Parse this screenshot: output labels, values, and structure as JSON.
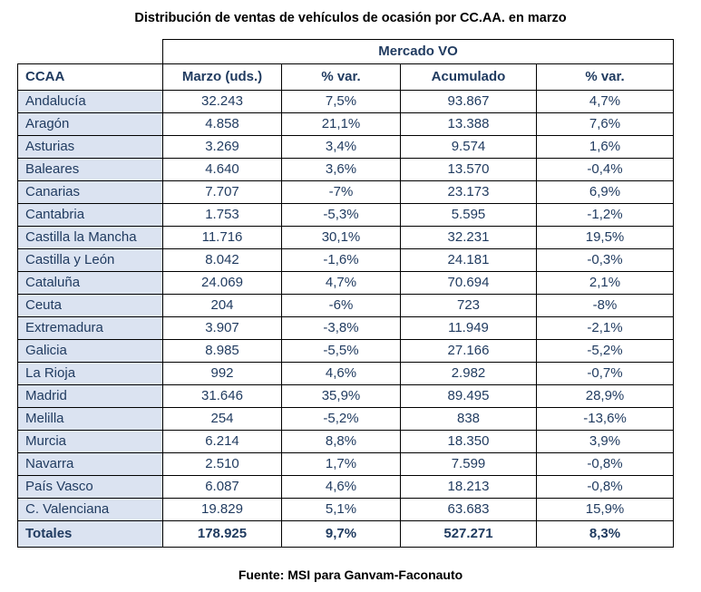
{
  "title": "Distribución de ventas de vehículos de ocasión por CC.AA. en marzo",
  "group_header": "Mercado VO",
  "columns": [
    "CCAA",
    "Marzo (uds.)",
    "% var.",
    "Acumulado",
    "% var."
  ],
  "rows": [
    [
      "Andalucía",
      "32.243",
      "7,5%",
      "93.867",
      "4,7%"
    ],
    [
      "Aragón",
      "4.858",
      "21,1%",
      "13.388",
      "7,6%"
    ],
    [
      "Asturias",
      "3.269",
      "3,4%",
      "9.574",
      "1,6%"
    ],
    [
      "Baleares",
      "4.640",
      "3,6%",
      "13.570",
      "-0,4%"
    ],
    [
      "Canarias",
      "7.707",
      "-7%",
      "23.173",
      "6,9%"
    ],
    [
      "Cantabria",
      "1.753",
      "-5,3%",
      "5.595",
      "-1,2%"
    ],
    [
      "Castilla la Mancha",
      "11.716",
      "30,1%",
      "32.231",
      "19,5%"
    ],
    [
      "Castilla y León",
      "8.042",
      "-1,6%",
      "24.181",
      "-0,3%"
    ],
    [
      "Cataluña",
      "24.069",
      "4,7%",
      "70.694",
      "2,1%"
    ],
    [
      "Ceuta",
      "204",
      "-6%",
      "723",
      "-8%"
    ],
    [
      "Extremadura",
      "3.907",
      "-3,8%",
      "11.949",
      "-2,1%"
    ],
    [
      "Galicia",
      "8.985",
      "-5,5%",
      "27.166",
      "-5,2%"
    ],
    [
      "La Rioja",
      "992",
      "4,6%",
      "2.982",
      "-0,7%"
    ],
    [
      "Madrid",
      "31.646",
      "35,9%",
      "89.495",
      "28,9%"
    ],
    [
      "Melilla",
      "254",
      "-5,2%",
      "838",
      "-13,6%"
    ],
    [
      "Murcia",
      "6.214",
      "8,8%",
      "18.350",
      "3,9%"
    ],
    [
      "Navarra",
      "2.510",
      "1,7%",
      "7.599",
      "-0,8%"
    ],
    [
      "País Vasco",
      "6.087",
      "4,6%",
      "18.213",
      "-0,8%"
    ],
    [
      "C. Valenciana",
      "19.829",
      "5,1%",
      "63.683",
      "15,9%"
    ]
  ],
  "totals": [
    "Totales",
    "178.925",
    "9,7%",
    "527.271",
    "8,3%"
  ],
  "source": "Fuente: MSI para Ganvam-Faconauto",
  "colors": {
    "region_fill": "#dbe3f1",
    "text": "#1f3a5f",
    "border": "#000000"
  }
}
